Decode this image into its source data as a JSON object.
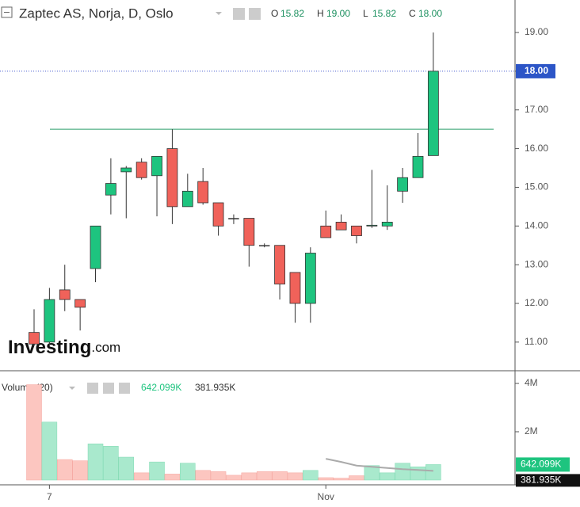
{
  "chart_data": {
    "type": "candlestick",
    "title": "Zaptec AS, Norja, D, Oslo",
    "ohlc_keys": [
      "O",
      "H",
      "L",
      "C"
    ],
    "ohlc_labels": [
      "15.82",
      "19.00",
      "15.82",
      "18.00"
    ],
    "categories": [
      null,
      "7",
      null,
      null,
      null,
      null,
      null,
      null,
      null,
      null,
      null,
      null,
      null,
      null,
      null,
      null,
      null,
      null,
      null,
      "Nov",
      null,
      null,
      null,
      null,
      null,
      null,
      null
    ],
    "open": [
      11.25,
      11.0,
      12.35,
      12.1,
      12.9,
      14.8,
      15.4,
      15.65,
      15.3,
      16.0,
      14.5,
      15.15,
      14.6,
      14.2,
      14.2,
      13.5,
      13.5,
      12.8,
      12.0,
      14.0,
      14.1,
      14.0,
      14.0,
      14.0,
      14.9,
      15.25,
      15.82
    ],
    "high": [
      11.85,
      12.4,
      13.0,
      12.1,
      14.0,
      15.75,
      15.55,
      15.75,
      15.8,
      16.5,
      15.35,
      15.5,
      14.6,
      14.3,
      14.2,
      13.55,
      13.5,
      12.8,
      13.45,
      14.4,
      14.3,
      14.0,
      15.45,
      15.05,
      15.5,
      16.4,
      19.0
    ],
    "low": [
      10.9,
      10.9,
      11.8,
      11.3,
      12.55,
      14.3,
      14.2,
      15.2,
      14.25,
      14.05,
      14.5,
      14.55,
      13.75,
      14.05,
      12.95,
      13.45,
      12.1,
      11.5,
      11.5,
      13.7,
      13.9,
      13.55,
      13.95,
      13.9,
      14.6,
      15.25,
      15.82
    ],
    "close": [
      10.95,
      12.1,
      12.1,
      11.9,
      14.0,
      15.1,
      15.5,
      15.25,
      15.8,
      14.5,
      14.9,
      14.6,
      14.0,
      14.2,
      13.5,
      13.5,
      12.5,
      12.0,
      13.3,
      13.7,
      13.9,
      13.75,
      14.02,
      14.1,
      15.25,
      15.8,
      18.0
    ],
    "up_color": "#1ec47f",
    "down_color": "#f0625a",
    "ylim": [
      10.26,
      19.84
    ],
    "yticks": [
      {
        "value": 11,
        "label": "11.00"
      },
      {
        "value": 12,
        "label": "12.00"
      },
      {
        "value": 13,
        "label": "13.00"
      },
      {
        "value": 14,
        "label": "14.00"
      },
      {
        "value": 15,
        "label": "15.00"
      },
      {
        "value": 16,
        "label": "16.00"
      },
      {
        "value": 17,
        "label": "17.00"
      },
      {
        "value": 18,
        "label": "18.00"
      },
      {
        "value": 19,
        "label": "19.00"
      }
    ],
    "last_price": {
      "value": 18,
      "label": "18.00"
    },
    "hline": 16.5,
    "logo": "Investing",
    "logo_suffix": ".com",
    "volume": {
      "name": "Volume (20)",
      "values": [
        3.95,
        2.4,
        0.85,
        0.8,
        1.5,
        1.4,
        0.95,
        0.3,
        0.75,
        0.25,
        0.7,
        0.4,
        0.35,
        0.2,
        0.3,
        0.35,
        0.35,
        0.3,
        0.4,
        0.1,
        0.08,
        0.18,
        0.6,
        0.3,
        0.7,
        0.55,
        0.642099
      ],
      "ma": [
        null,
        null,
        null,
        null,
        null,
        null,
        null,
        null,
        null,
        null,
        null,
        null,
        null,
        null,
        null,
        null,
        null,
        null,
        null,
        0.88,
        0.75,
        0.6,
        0.55,
        0.5,
        0.45,
        0.42,
        0.381935
      ],
      "last_label": "642.099K",
      "ma_last_label": "381.935K",
      "up_color": "#a9e9cd",
      "down_color": "#fcc6c0",
      "ma_color": "#aaaaaa",
      "ylim": [
        0,
        4.46
      ],
      "yticks": [
        {
          "value": 2,
          "label": "2M"
        },
        {
          "value": 4,
          "label": "4M"
        }
      ]
    }
  }
}
